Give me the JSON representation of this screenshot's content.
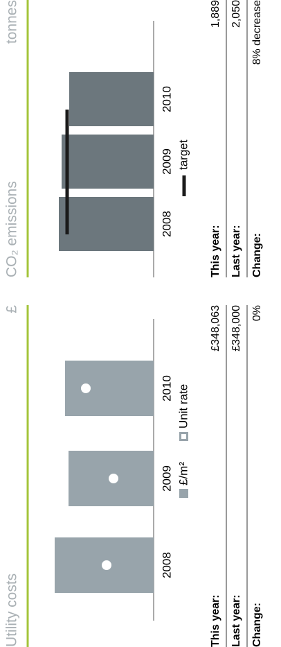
{
  "chart_data": [
    {
      "type": "bar",
      "title": "Utility costs",
      "unit": "£",
      "categories": [
        "2008",
        "2009",
        "2010"
      ],
      "ylim": [
        0,
        150
      ],
      "series": [
        {
          "name": "£/m²",
          "color": "#98a4ab",
          "values": [
            143,
            123,
            128
          ]
        },
        {
          "name": "Unit rate",
          "color": "#ffffff",
          "marker": "dot",
          "values": [
            68,
            58,
            98
          ]
        }
      ],
      "summary": [
        {
          "label": "This year:",
          "value": "£348,063"
        },
        {
          "label": "Last year:",
          "value": "£348,000"
        },
        {
          "label": "Change:",
          "value": "0%"
        }
      ]
    },
    {
      "type": "bar",
      "title": "CO₂ emissions",
      "unit": "tonnes",
      "categories": [
        "2008",
        "2009",
        "2010"
      ],
      "ylim": [
        0,
        150
      ],
      "series": [
        {
          "color": "#6c777d",
          "values": [
            137,
            133,
            122
          ]
        }
      ],
      "target": {
        "name": "target",
        "value": 125,
        "color": "#1a1a1a"
      },
      "summary": [
        {
          "label": "This year:",
          "value": "1,889"
        },
        {
          "label": "Last year:",
          "value": "2,050"
        },
        {
          "label": "Change:",
          "value": "8% decrease"
        }
      ]
    }
  ]
}
